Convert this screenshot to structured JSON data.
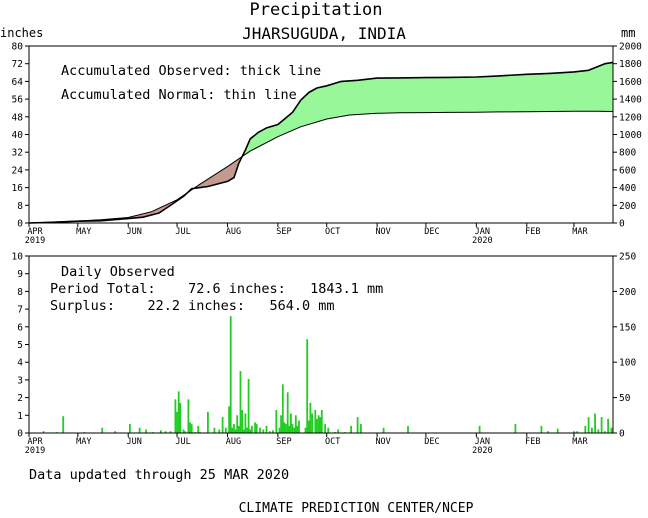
{
  "header": {
    "title": "Precipitation",
    "subtitle": "JHARSUGUDA, INDIA"
  },
  "colors": {
    "surplus": "#98f798",
    "deficit": "#c39a90",
    "daily_bar": "#22cc22",
    "axis": "#000000"
  },
  "chart_data": [
    {
      "type": "area",
      "left_unit": "inches",
      "right_unit": "mm",
      "ylim": [
        0,
        80
      ],
      "yticks": [
        "0",
        "8",
        "16",
        "24",
        "32",
        "40",
        "48",
        "56",
        "64",
        "72",
        "80"
      ],
      "right_ylim": [
        0,
        2000
      ],
      "right_yticks": [
        "0",
        "200",
        "400",
        "600",
        "800",
        "1000",
        "1200",
        "1400",
        "1600",
        "1800",
        "2000"
      ],
      "xlim": [
        "2019-04-01",
        "2020-03-25"
      ],
      "xticks": [
        "APR",
        "MAY",
        "JUN",
        "JUL",
        "AUG",
        "SEP",
        "OCT",
        "NOV",
        "DEC",
        "JAN",
        "FEB",
        "MAR"
      ],
      "xtick_years": {
        "APR": "2019",
        "JAN": "2020"
      },
      "annotations": [
        "Accumulated Observed: thick line",
        "Accumulated Normal: thin line"
      ],
      "series": [
        {
          "name": "Accumulated Observed",
          "x": [
            "2019-04-01",
            "2019-04-15",
            "2019-05-01",
            "2019-05-15",
            "2019-06-01",
            "2019-06-10",
            "2019-06-20",
            "2019-06-25",
            "2019-07-05",
            "2019-07-10",
            "2019-07-20",
            "2019-08-01",
            "2019-08-05",
            "2019-08-08",
            "2019-08-12",
            "2019-08-15",
            "2019-08-20",
            "2019-08-25",
            "2019-09-01",
            "2019-09-10",
            "2019-09-15",
            "2019-09-20",
            "2019-09-25",
            "2019-10-01",
            "2019-10-10",
            "2019-10-20",
            "2019-11-01",
            "2019-11-15",
            "2019-12-01",
            "2019-12-15",
            "2020-01-01",
            "2020-01-15",
            "2020-02-01",
            "2020-02-15",
            "2020-03-01",
            "2020-03-10",
            "2020-03-15",
            "2020-03-20",
            "2020-03-25"
          ],
          "values": [
            0,
            0.3,
            0.8,
            1.0,
            2.0,
            2.6,
            4.5,
            7.0,
            12.0,
            15.5,
            16.5,
            18.8,
            20.5,
            27.0,
            33.0,
            38.0,
            41.0,
            43.0,
            44.5,
            50.0,
            55.5,
            59.0,
            61.0,
            62.0,
            64.0,
            64.5,
            65.5,
            65.6,
            65.7,
            65.8,
            66.0,
            66.5,
            67.2,
            67.6,
            68.3,
            69.0,
            70.5,
            72.0,
            72.6
          ]
        },
        {
          "name": "Accumulated Normal",
          "x": [
            "2019-04-01",
            "2019-04-15",
            "2019-05-01",
            "2019-05-15",
            "2019-06-01",
            "2019-06-15",
            "2019-07-01",
            "2019-07-15",
            "2019-08-01",
            "2019-08-15",
            "2019-09-01",
            "2019-09-15",
            "2019-10-01",
            "2019-10-15",
            "2019-11-01",
            "2019-11-15",
            "2019-12-01",
            "2019-12-15",
            "2020-01-01",
            "2020-01-15",
            "2020-02-01",
            "2020-02-15",
            "2020-03-01",
            "2020-03-15",
            "2020-03-25"
          ],
          "values": [
            0,
            0.4,
            0.9,
            1.5,
            2.5,
            5.0,
            10.5,
            17.5,
            25.5,
            32.5,
            39.0,
            43.5,
            47.0,
            48.8,
            49.6,
            49.8,
            49.9,
            50.0,
            50.1,
            50.2,
            50.3,
            50.4,
            50.5,
            50.5,
            50.4
          ]
        }
      ]
    },
    {
      "type": "bar",
      "left_ylim": [
        0,
        10
      ],
      "yticks": [
        "0",
        "1",
        "2",
        "3",
        "4",
        "5",
        "6",
        "7",
        "8",
        "9",
        "10"
      ],
      "right_ylim": [
        0,
        250
      ],
      "right_yticks": [
        "0",
        "50",
        "100",
        "150",
        "200",
        "250"
      ],
      "xlim": [
        "2019-04-01",
        "2020-03-25"
      ],
      "xticks": [
        "APR",
        "MAY",
        "JUN",
        "JUL",
        "AUG",
        "SEP",
        "OCT",
        "NOV",
        "DEC",
        "JAN",
        "FEB",
        "MAR"
      ],
      "xtick_years": {
        "APR": "2019",
        "JAN": "2020"
      },
      "label": "Daily Observed",
      "period_total_text": "Period Total:    72.6 inches:   1843.1 mm",
      "surplus_text": "Surplus:    22.2 inches:   564.0 mm",
      "series": [
        {
          "x": [
            "2019-04-10",
            "2019-04-18",
            "2019-04-22",
            "2019-05-05",
            "2019-05-16",
            "2019-05-24",
            "2019-06-02",
            "2019-06-08",
            "2019-06-12",
            "2019-06-16",
            "2019-06-21",
            "2019-06-24",
            "2019-06-27",
            "2019-07-01",
            "2019-07-03",
            "2019-07-05",
            "2019-07-06",
            "2019-07-08",
            "2019-07-09",
            "2019-07-10",
            "2019-07-12",
            "2019-07-14",
            "2019-07-15",
            "2019-07-20",
            "2019-07-24",
            "2019-07-27",
            "2019-07-29",
            "2019-07-31",
            "2019-08-02",
            "2019-08-04",
            "2019-08-05",
            "2019-08-06",
            "2019-08-07",
            "2019-08-08",
            "2019-08-10",
            "2019-08-11",
            "2019-08-12",
            "2019-08-13",
            "2019-08-15",
            "2019-08-16",
            "2019-08-18",
            "2019-08-19",
            "2019-08-21",
            "2019-08-23",
            "2019-08-25",
            "2019-08-27",
            "2019-08-29",
            "2019-08-31",
            "2019-09-02",
            "2019-09-03",
            "2019-09-05",
            "2019-09-06",
            "2019-09-07",
            "2019-09-08",
            "2019-09-09",
            "2019-09-10",
            "2019-09-11",
            "2019-09-12",
            "2019-09-13",
            "2019-09-14",
            "2019-09-18",
            "2019-09-20",
            "2019-09-22",
            "2019-09-24",
            "2019-09-25",
            "2019-09-26",
            "2019-09-27",
            "2019-09-28",
            "2019-09-30",
            "2019-10-02",
            "2019-10-06",
            "2019-10-08",
            "2019-10-12",
            "2019-10-16",
            "2019-10-20",
            "2019-10-22",
            "2019-11-05",
            "2019-11-20",
            "2020-01-03",
            "2020-01-25",
            "2020-02-10",
            "2020-02-14",
            "2020-02-20",
            "2020-03-01",
            "2020-03-03",
            "2020-03-08",
            "2020-03-10",
            "2020-03-12",
            "2020-03-14",
            "2020-03-16",
            "2020-03-18",
            "2020-03-20",
            "2020-03-22",
            "2020-03-24"
          ],
          "values": [
            0.1,
            0.05,
            0.95,
            0.05,
            0.3,
            0.1,
            0.5,
            0.3,
            0.2,
            0.05,
            0.15,
            0.1,
            0.1,
            1.2,
            1.7,
            0.2,
            0.1,
            1.9,
            0.6,
            0.5,
            0.05,
            0.4,
            0.05,
            1.2,
            0.3,
            0.2,
            0.9,
            0.3,
            1.5,
            0.3,
            0.5,
            0.2,
            1.0,
            0.4,
            1.3,
            0.2,
            1.1,
            0.3,
            0.2,
            0.4,
            0.6,
            0.5,
            0.3,
            0.2,
            0.4,
            0.1,
            0.15,
            1.3,
            0.3,
            1.0,
            0.6,
            0.5,
            2.3,
            0.4,
            1.1,
            0.5,
            0.3,
            1.0,
            0.4,
            0.7,
            0.3,
            0.7,
            1.1,
            1.3,
            0.8,
            1.0,
            0.9,
            1.3,
            0.5,
            0.3,
            0.05,
            0.2,
            0.05,
            0.4,
            0.9,
            0.5,
            0.3,
            0.4,
            0.4,
            0.5,
            0.4,
            0.1,
            0.25,
            0.1,
            0.1,
            0.4,
            0.9,
            0.3,
            1.1,
            0.2,
            0.9,
            0.1,
            0.8,
            0.3
          ]
        },
        {
          "x": [
            "2019-06-30",
            "2019-07-02",
            "2019-08-03",
            "2019-08-09",
            "2019-08-14",
            "2019-09-04",
            "2019-09-19",
            "2019-09-21"
          ],
          "values": [
            1.9,
            2.35,
            6.6,
            3.5,
            3.05,
            2.75,
            5.3,
            1.7
          ]
        }
      ]
    }
  ],
  "footer": {
    "updated": "Data updated through 25 MAR 2020",
    "source": "CLIMATE PREDICTION CENTER/NCEP"
  }
}
